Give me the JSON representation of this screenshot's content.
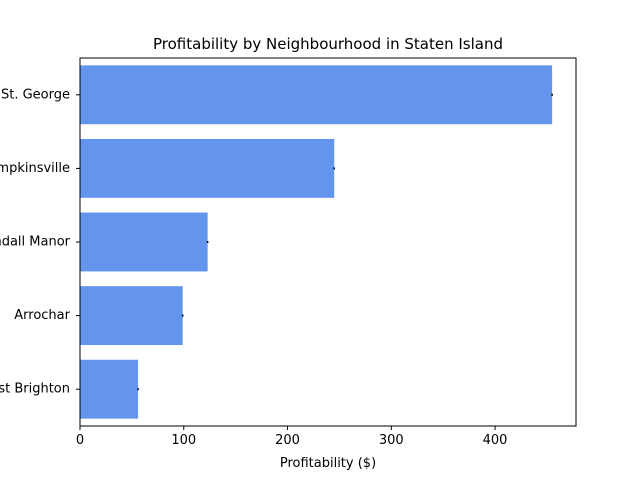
{
  "chart_data": {
    "type": "bar",
    "orientation": "horizontal",
    "title": "Profitability by Neighbourhood in Staten Island",
    "xlabel": "Profitability ($)",
    "ylabel": "",
    "categories": [
      "St. George",
      "Tompkinsville",
      "Randall Manor",
      "Arrochar",
      "West Brighton"
    ],
    "values": [
      455,
      245,
      123,
      99,
      56
    ],
    "xlim": [
      0,
      478
    ],
    "xticks": [
      0,
      100,
      200,
      300,
      400
    ],
    "xtick_labels": [
      "0",
      "100",
      "200",
      "300",
      "400"
    ],
    "grid": false,
    "bar_color": "#6495ed"
  }
}
